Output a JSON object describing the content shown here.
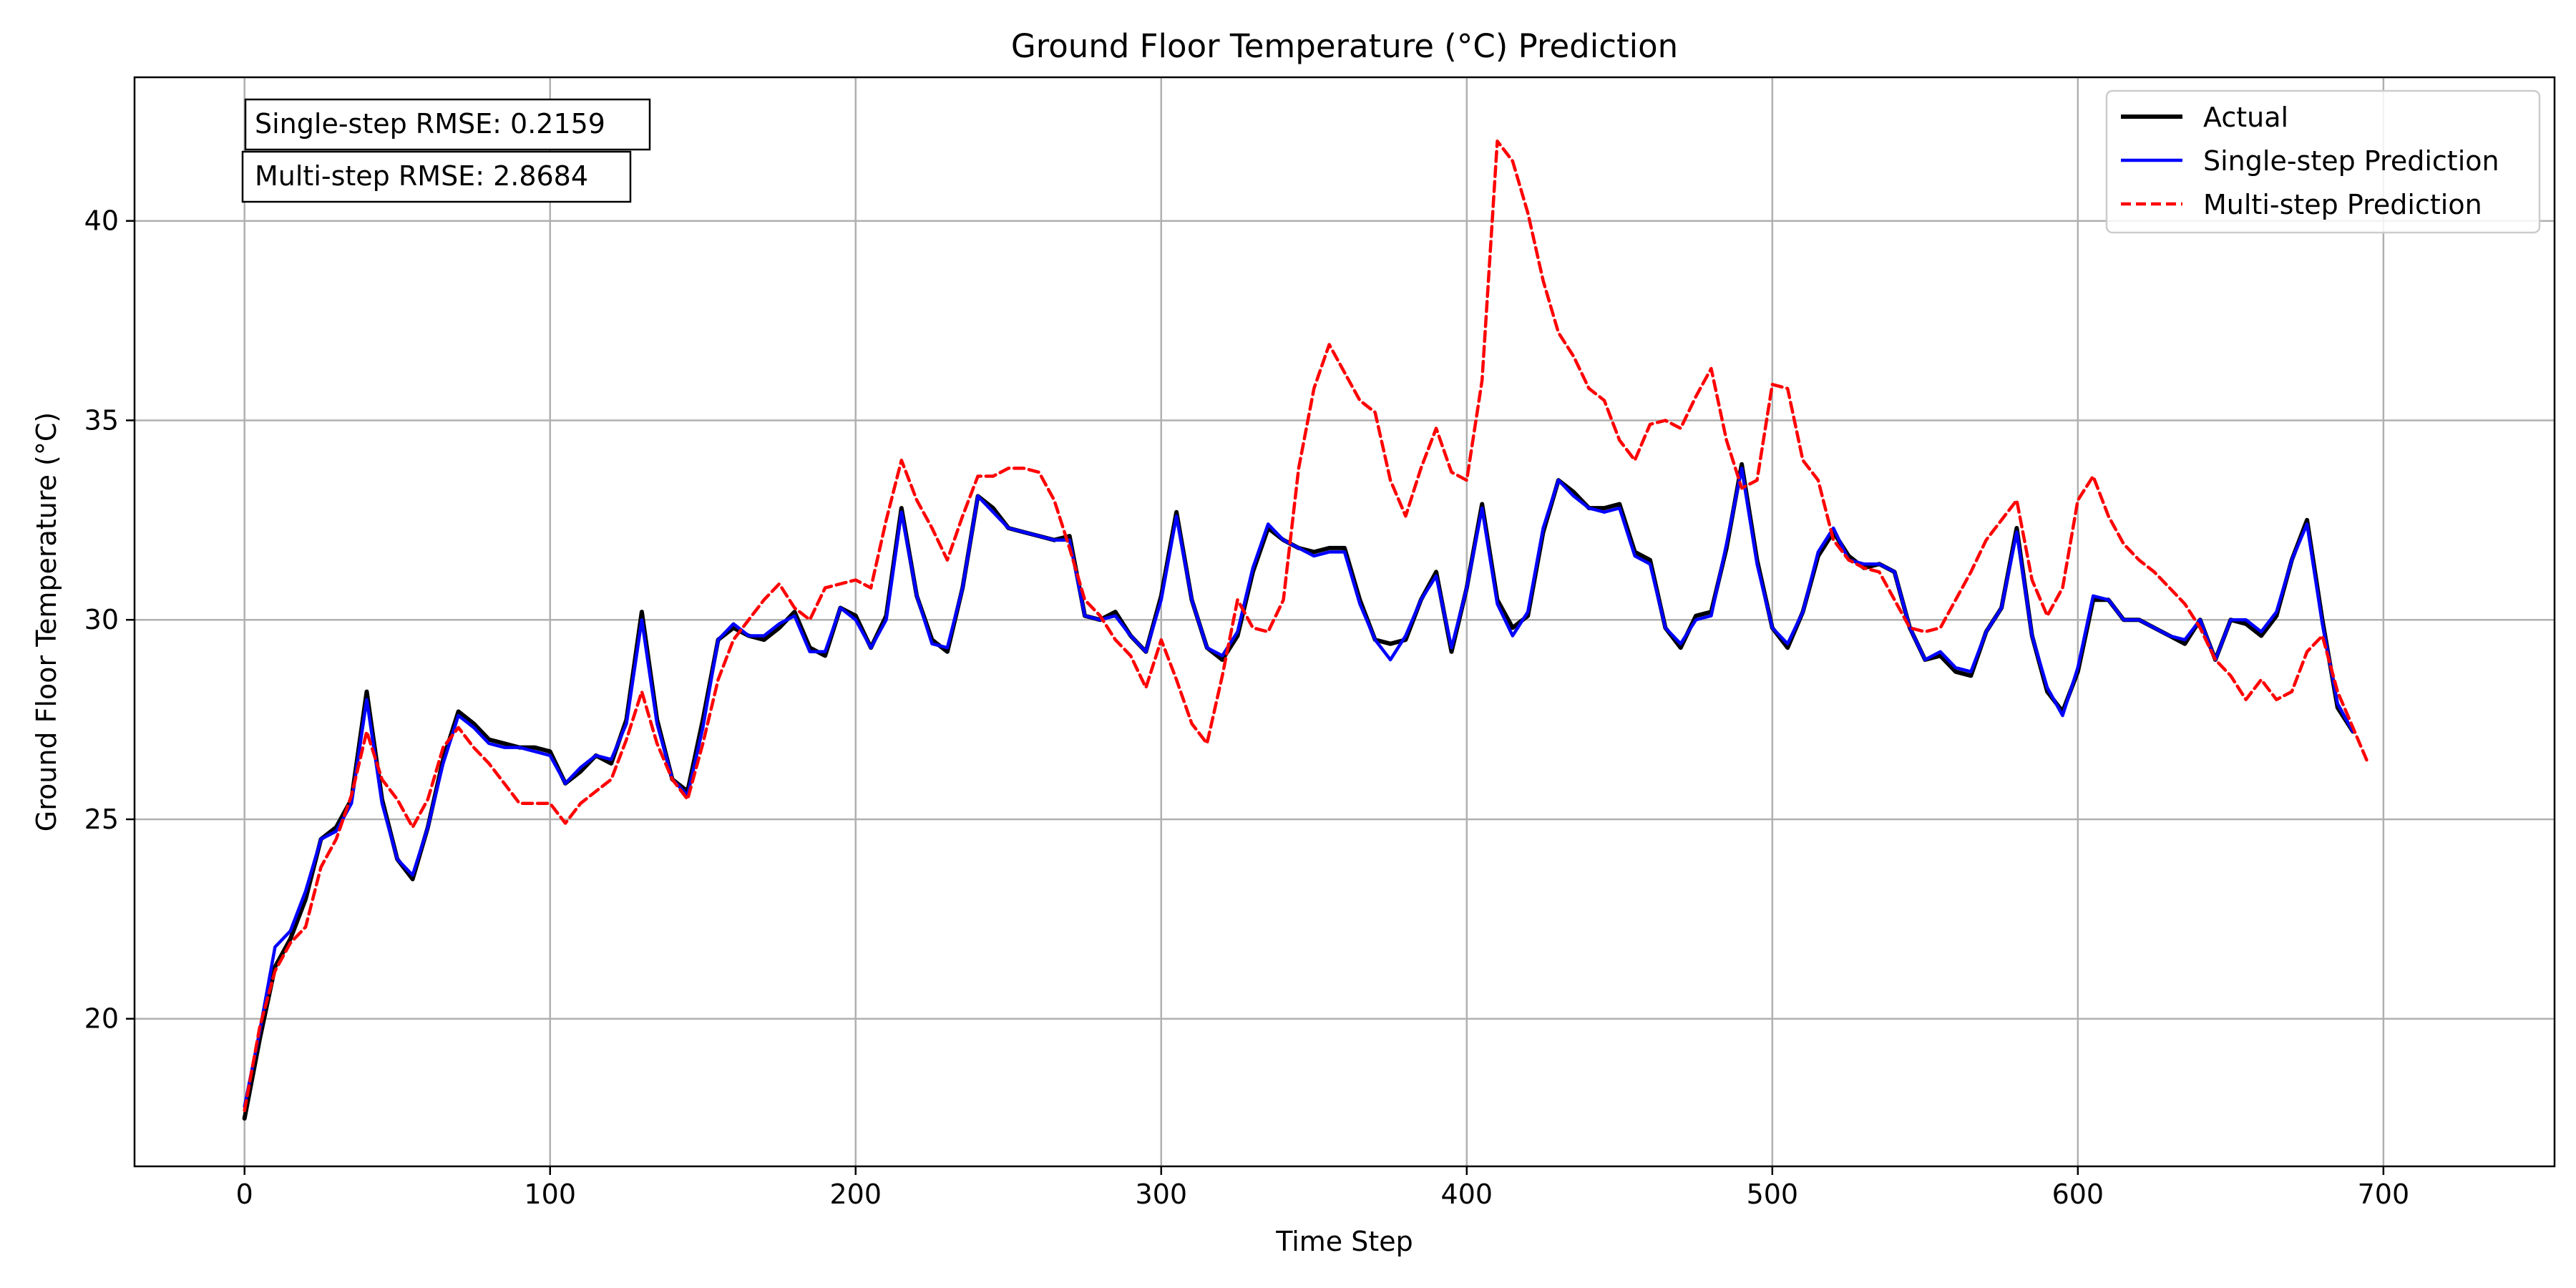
{
  "chart_data": {
    "type": "line",
    "title": "Ground Floor Temperature (°C) Prediction",
    "xlabel": "Time Step",
    "ylabel": "Ground Floor Temperature (°C)",
    "xlim": [
      -36,
      756
    ],
    "ylim": [
      16.3,
      43.6
    ],
    "xticks": [
      0,
      100,
      200,
      300,
      400,
      500,
      600,
      700
    ],
    "yticks": [
      20,
      25,
      30,
      35,
      40
    ],
    "grid": true,
    "legend_position": "top-right",
    "annotations": [
      "Single-step RMSE: 0.2159",
      "Multi-step RMSE: 2.8684"
    ],
    "colors": {
      "actual": "#000000",
      "single": "#0000ff",
      "multi": "#ff0000",
      "grid": "#b0b0b0"
    },
    "x_step": 5,
    "series": [
      {
        "name": "Actual",
        "style": "solid",
        "values": [
          17.5,
          19.5,
          21.3,
          22.0,
          23.0,
          24.5,
          24.8,
          25.5,
          28.2,
          25.5,
          24.0,
          23.5,
          24.8,
          26.5,
          27.7,
          27.4,
          27.0,
          26.9,
          26.8,
          26.8,
          26.7,
          25.9,
          26.2,
          26.6,
          26.4,
          27.5,
          30.2,
          27.5,
          26.0,
          25.7,
          27.5,
          29.5,
          29.8,
          29.6,
          29.5,
          29.8,
          30.2,
          29.3,
          29.1,
          30.3,
          30.1,
          29.3,
          30.1,
          32.8,
          30.6,
          29.5,
          29.2,
          30.8,
          33.1,
          32.8,
          32.3,
          32.2,
          32.1,
          32.0,
          32.1,
          30.1,
          30.0,
          30.2,
          29.6,
          29.2,
          30.6,
          32.7,
          30.5,
          29.3,
          29.0,
          29.6,
          31.2,
          32.3,
          32.0,
          31.8,
          31.7,
          31.8,
          31.8,
          30.5,
          29.5,
          29.4,
          29.5,
          30.5,
          31.2,
          29.2,
          30.8,
          32.9,
          30.5,
          29.8,
          30.1,
          32.2,
          33.5,
          33.2,
          32.8,
          32.8,
          32.9,
          31.7,
          31.5,
          29.8,
          29.3,
          30.1,
          30.2,
          31.8,
          33.9,
          31.5,
          29.8,
          29.3,
          30.2,
          31.6,
          32.2,
          31.6,
          31.3,
          31.4,
          31.2,
          29.8,
          29.0,
          29.1,
          28.7,
          28.6,
          29.7,
          30.3,
          32.3,
          29.6,
          28.2,
          27.7,
          28.7,
          30.5,
          30.5,
          30.0,
          30.0,
          29.8,
          29.6,
          29.4,
          30.0,
          29.0,
          30.0,
          29.9,
          29.6,
          30.1,
          31.5,
          32.5,
          30.0,
          27.8,
          27.2
        ]
      },
      {
        "name": "Single-step Prediction",
        "style": "solid",
        "values": [
          17.8,
          19.7,
          21.8,
          22.2,
          23.2,
          24.5,
          24.7,
          25.4,
          28.0,
          25.4,
          24.0,
          23.6,
          24.8,
          26.4,
          27.6,
          27.3,
          26.9,
          26.8,
          26.8,
          26.7,
          26.6,
          25.9,
          26.3,
          26.6,
          26.5,
          27.4,
          30.0,
          27.4,
          26.0,
          25.6,
          27.3,
          29.5,
          29.9,
          29.6,
          29.6,
          29.9,
          30.1,
          29.2,
          29.2,
          30.3,
          30.0,
          29.3,
          30.0,
          32.7,
          30.6,
          29.4,
          29.3,
          30.8,
          33.1,
          32.7,
          32.3,
          32.2,
          32.1,
          32.0,
          32.0,
          30.1,
          30.0,
          30.1,
          29.6,
          29.2,
          30.5,
          32.6,
          30.5,
          29.3,
          29.1,
          29.7,
          31.3,
          32.4,
          32.0,
          31.8,
          31.6,
          31.7,
          31.7,
          30.4,
          29.5,
          29.0,
          29.6,
          30.5,
          31.1,
          29.3,
          30.8,
          32.8,
          30.4,
          29.6,
          30.2,
          32.3,
          33.5,
          33.1,
          32.8,
          32.7,
          32.8,
          31.6,
          31.4,
          29.8,
          29.4,
          30.0,
          30.1,
          31.9,
          33.8,
          31.4,
          29.8,
          29.4,
          30.2,
          31.7,
          32.3,
          31.5,
          31.4,
          31.4,
          31.2,
          29.8,
          29.0,
          29.2,
          28.8,
          28.7,
          29.7,
          30.3,
          32.2,
          29.6,
          28.3,
          27.6,
          28.8,
          30.6,
          30.5,
          30.0,
          30.0,
          29.8,
          29.6,
          29.5,
          30.0,
          29.0,
          30.0,
          30.0,
          29.7,
          30.2,
          31.5,
          32.4,
          29.9,
          27.9,
          27.2
        ]
      },
      {
        "name": "Multi-step Prediction",
        "style": "dashed",
        "values": [
          17.7,
          19.8,
          21.2,
          21.9,
          22.3,
          23.8,
          24.5,
          25.6,
          27.2,
          26.0,
          25.5,
          24.8,
          25.5,
          26.8,
          27.3,
          26.8,
          26.4,
          25.9,
          25.4,
          25.4,
          25.4,
          24.9,
          25.4,
          25.7,
          26.0,
          27.0,
          28.2,
          26.9,
          26.0,
          25.5,
          26.9,
          28.5,
          29.5,
          30.0,
          30.5,
          30.9,
          30.3,
          30.0,
          30.8,
          30.9,
          31.0,
          30.8,
          32.5,
          34.0,
          33.0,
          32.3,
          31.5,
          32.6,
          33.6,
          33.6,
          33.8,
          33.8,
          33.7,
          33.0,
          31.8,
          30.5,
          30.1,
          29.5,
          29.1,
          28.3,
          29.5,
          28.5,
          27.4,
          26.9,
          28.6,
          30.5,
          29.8,
          29.7,
          30.5,
          33.8,
          35.8,
          36.9,
          36.2,
          35.5,
          35.2,
          33.5,
          32.6,
          33.8,
          34.8,
          33.7,
          33.5,
          36.0,
          42.0,
          41.5,
          40.2,
          38.5,
          37.2,
          36.6,
          35.8,
          35.5,
          34.5,
          34.0,
          34.9,
          35.0,
          34.8,
          35.6,
          36.3,
          34.5,
          33.3,
          33.5,
          35.9,
          35.8,
          34.0,
          33.5,
          32.0,
          31.5,
          31.3,
          31.2,
          30.5,
          29.8,
          29.7,
          29.8,
          30.5,
          31.2,
          32.0,
          32.5,
          33.0,
          31.0,
          30.1,
          30.8,
          33.0,
          33.6,
          32.6,
          31.9,
          31.5,
          31.2,
          30.8,
          30.4,
          29.8,
          29.0,
          28.6,
          28.0,
          28.5,
          28.0,
          28.2,
          29.2,
          29.6,
          28.2,
          27.3,
          26.4
        ]
      }
    ],
    "legend": {
      "items": [
        {
          "label": "Actual",
          "color": "#000000",
          "style": "solid"
        },
        {
          "label": "Single-step Prediction",
          "color": "#0000ff",
          "style": "solid"
        },
        {
          "label": "Multi-step Prediction",
          "color": "#ff0000",
          "style": "dashed"
        }
      ]
    }
  }
}
